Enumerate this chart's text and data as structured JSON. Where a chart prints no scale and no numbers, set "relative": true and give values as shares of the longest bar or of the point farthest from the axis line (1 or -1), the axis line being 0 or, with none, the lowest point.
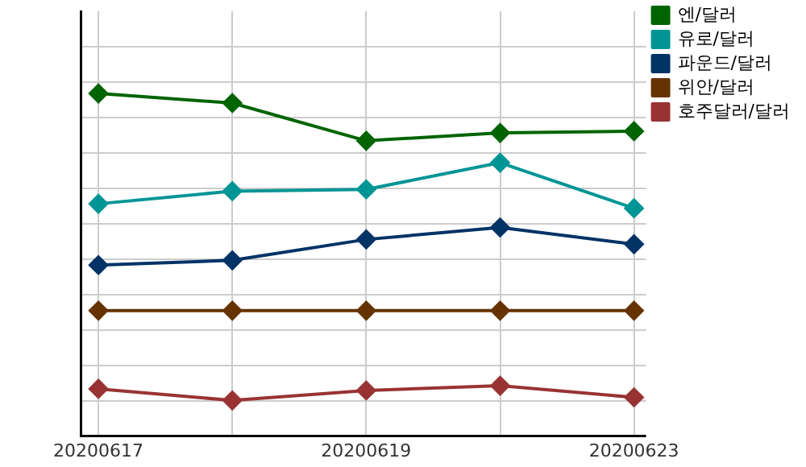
{
  "chart_data": {
    "type": "line",
    "relative": true,
    "categories": [
      "20200617",
      null,
      "20200619",
      null,
      "20200623"
    ],
    "grid": true,
    "legend": "top right",
    "marker": "diamond",
    "line_style": "solid",
    "series": [
      {
        "name": "엔/달러",
        "color": "#006400",
        "values": [
          1,
          0.972,
          0.862,
          0.885,
          0.89
        ]
      },
      {
        "name": "유로/달러",
        "color": "#009595",
        "values": [
          0.678,
          0.715,
          0.72,
          0.798,
          0.665
        ]
      },
      {
        "name": "파운드/달러",
        "color": "#003366",
        "values": [
          0.499,
          0.513,
          0.574,
          0.609,
          0.56
        ]
      },
      {
        "name": "위안/달러",
        "color": "#663300",
        "values": [
          0.366,
          0.366,
          0.366,
          0.366,
          0.366
        ]
      },
      {
        "name": "호주달러/달러",
        "color": "#993333",
        "values": [
          0.138,
          0.104,
          0.133,
          0.147,
          0.113
        ]
      }
    ]
  }
}
